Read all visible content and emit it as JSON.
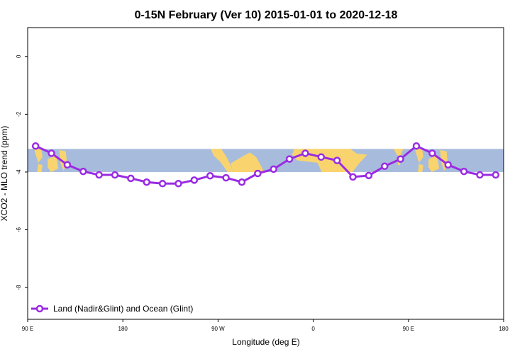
{
  "chart_data": {
    "type": "line",
    "title": "0-15N February (Ver 10)   2015-01-01 to 2020-12-18",
    "xlabel": "Longitude (deg E)",
    "ylabel": "XCO2 - MLO trend (ppm)",
    "xlim": [
      90,
      540
    ],
    "ylim": [
      -9.1,
      1.0
    ],
    "x_ticks": [
      {
        "value": 90,
        "label": "90 E"
      },
      {
        "value": 180,
        "label": "180"
      },
      {
        "value": 270,
        "label": "90 W"
      },
      {
        "value": 360,
        "label": "0"
      },
      {
        "value": 450,
        "label": "90 E"
      },
      {
        "value": 540,
        "label": "180"
      }
    ],
    "y_ticks": [
      {
        "value": 0,
        "label": "0"
      },
      {
        "value": -2,
        "label": "-2"
      },
      {
        "value": -4,
        "label": "-4"
      },
      {
        "value": -6,
        "label": "-6"
      },
      {
        "value": -8,
        "label": "-8"
      }
    ],
    "map_band": {
      "lat_range": [
        0,
        15
      ],
      "ymin": -4.0,
      "ymax": -3.2
    },
    "series": [
      {
        "name": "Land (Nadir&Glint) and Ocean (Glint)",
        "color": "#9a2be2",
        "x": [
          97.5,
          112.5,
          127.5,
          142.5,
          157.5,
          172.5,
          187.5,
          202.5,
          217.5,
          232.5,
          247.5,
          262.5,
          277.5,
          292.5,
          307.5,
          322.5,
          337.5,
          352.5,
          367.5,
          382.5,
          397.5,
          412.5,
          427.5,
          442.5,
          457.5,
          472.5,
          487.5,
          502.5,
          517.5,
          532.5
        ],
        "y": [
          -3.1,
          -3.35,
          -3.75,
          -3.98,
          -4.1,
          -4.1,
          -4.22,
          -4.35,
          -4.4,
          -4.4,
          -4.28,
          -4.13,
          -4.2,
          -4.35,
          -4.05,
          -3.9,
          -3.55,
          -3.35,
          -3.48,
          -3.6,
          -4.17,
          -4.12,
          -3.8,
          -3.55,
          -3.1,
          -3.35,
          -3.75,
          -3.98,
          -4.1,
          -4.1
        ]
      }
    ],
    "legend": {
      "position": "bottom-left"
    }
  }
}
